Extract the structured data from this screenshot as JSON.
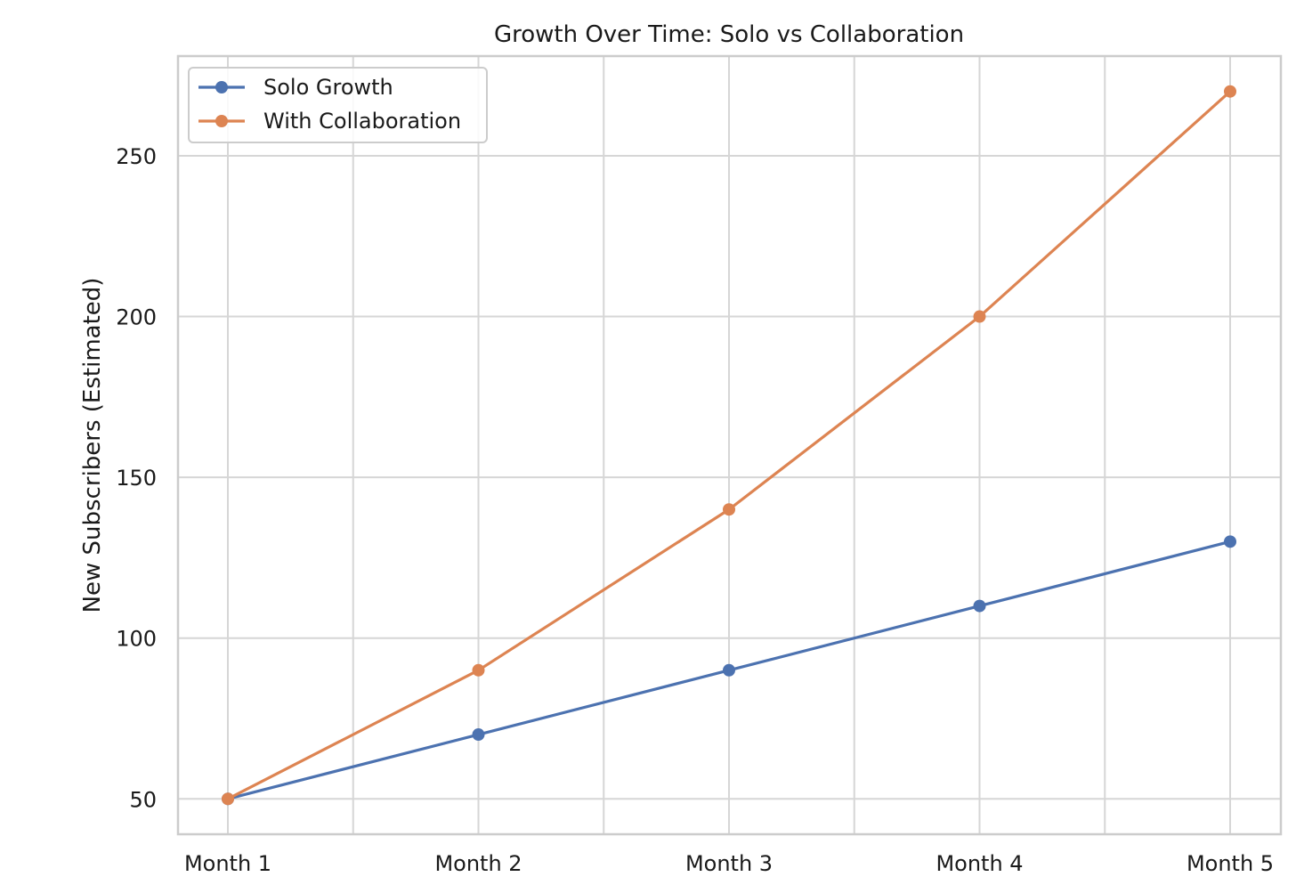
{
  "chart_data": {
    "type": "line",
    "title": "Growth Over Time: Solo vs Collaboration",
    "xlabel": "",
    "ylabel": "New Subscribers (Estimated)",
    "categories": [
      "Month 1",
      "Month 2",
      "Month 3",
      "Month 4",
      "Month 5"
    ],
    "series": [
      {
        "name": "Solo Growth",
        "color": "#4c72b0",
        "values": [
          50,
          70,
          90,
          110,
          130
        ]
      },
      {
        "name": "With Collaboration",
        "color": "#dd8452",
        "values": [
          50,
          90,
          140,
          200,
          270
        ]
      }
    ],
    "yticks": [
      50,
      100,
      150,
      200,
      250
    ],
    "ylim": [
      39,
      281
    ],
    "grid": true,
    "legend_position": "top-left",
    "colors": {
      "grid": "#d6d6d6",
      "frame": "#cccccc",
      "text": "#1a1a1a",
      "background": "#ffffff"
    }
  }
}
